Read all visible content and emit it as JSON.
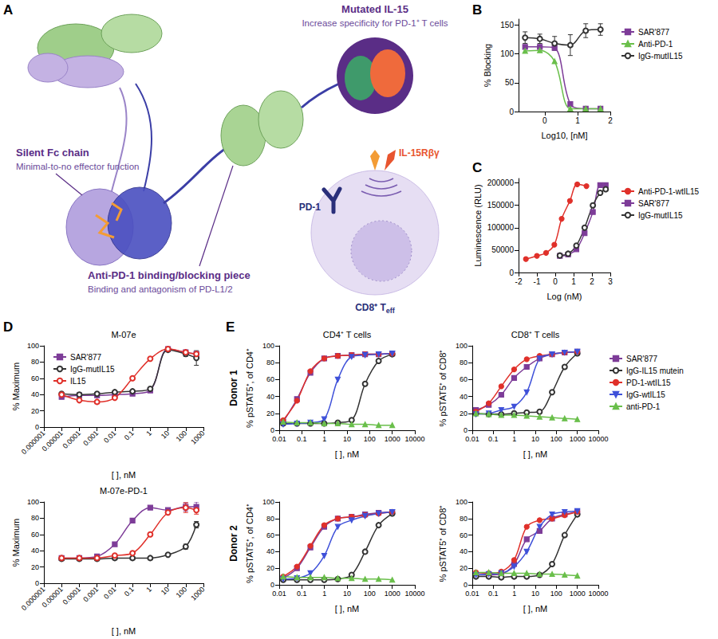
{
  "diagram": {
    "panel": "A",
    "callouts": [
      {
        "title": "Mutated IL-15",
        "text": "Increase specificity for PD-1⁺ T cells"
      },
      {
        "title": "Silent Fc chain",
        "text": "Minimal-to-no effector function"
      },
      {
        "title": "Anti-PD-1 binding/blocking piece",
        "text": "Binding and antagonism of PD-L1/2"
      }
    ],
    "receptors": [
      "IL-15Rβγ",
      "PD-1"
    ],
    "cell": {
      "text": "CD8⁺ T",
      "subscript": "eff"
    }
  },
  "chart_data": [
    {
      "panel": "B",
      "type": "line",
      "xlabel": "Log10, [nM]",
      "ylabel": "% Blocking",
      "xlim": [
        -0.8,
        2
      ],
      "xticks": [
        0,
        1,
        2
      ],
      "ylim": [
        0,
        160
      ],
      "yticks": [
        0,
        50,
        100,
        150
      ],
      "grid": false,
      "legend": "right",
      "x": [
        -0.6,
        -0.15,
        0.3,
        0.78,
        1.25,
        1.7
      ],
      "series": [
        {
          "name": "SAR'877",
          "color": "#7d3c98",
          "marker": "square",
          "values": [
            112,
            112,
            110,
            13,
            5,
            5
          ]
        },
        {
          "name": "Anti-PD-1",
          "color": "#6abf4b",
          "marker": "triangle",
          "values": [
            105,
            106,
            87,
            5,
            5,
            5
          ]
        },
        {
          "name": "IgG-mutIL15",
          "color": "#333333",
          "marker": "open circle",
          "values": [
            128,
            126,
            118,
            115,
            140,
            142
          ],
          "errors": [
            10,
            8,
            12,
            18,
            12,
            10
          ]
        }
      ]
    },
    {
      "panel": "C",
      "type": "line",
      "xlabel": "Log (nM)",
      "ylabel": "Luminescence (RLU)",
      "xlim": [
        -2,
        3
      ],
      "xticks": [
        -2,
        -1,
        0,
        1,
        2,
        3
      ],
      "ylim": [
        0,
        210000
      ],
      "yticks": [
        0,
        50000,
        100000,
        150000,
        200000
      ],
      "grid": false,
      "legend": "right",
      "series": [
        {
          "name": "Anti-PD-1-wtIL15",
          "color": "#e0302a",
          "marker": "circle",
          "x": [
            -1.6,
            -1.0,
            -0.5,
            -0.05,
            0.35,
            0.8,
            1.2,
            1.7
          ],
          "values": [
            30000,
            37000,
            44000,
            62000,
            120000,
            160000,
            197000,
            193000
          ]
        },
        {
          "name": "SAR'877",
          "color": "#7d3c98",
          "marker": "square",
          "x": [
            0.25,
            0.7,
            1.15,
            1.6,
            2.05,
            2.45,
            2.75
          ],
          "values": [
            37000,
            40000,
            52000,
            88000,
            135000,
            195000,
            195000
          ]
        },
        {
          "name": "IgG-mutIL15",
          "color": "#333333",
          "marker": "open circle",
          "x": [
            0.25,
            0.7,
            1.15,
            1.6,
            2.05,
            2.45,
            2.75
          ],
          "values": [
            38000,
            42000,
            60000,
            100000,
            150000,
            178000,
            186000
          ]
        }
      ]
    },
    {
      "panel": "D",
      "type": "line",
      "title": "M-07e",
      "xlabel": "[ ], nM",
      "ylabel": "% Maximum",
      "log": "x",
      "xlim": [
        1e-06,
        1000
      ],
      "xticks": [
        1e-06,
        1e-05,
        0.0001,
        0.001,
        0.01,
        0.1,
        1,
        10,
        100,
        1000
      ],
      "ylim": [
        0,
        100
      ],
      "yticks": [
        0,
        20,
        40,
        60,
        80,
        100
      ],
      "grid": false,
      "legend": "top-left",
      "x": [
        1e-05,
        0.0001,
        0.001,
        0.01,
        0.1,
        1,
        10,
        100,
        400
      ],
      "series": [
        {
          "name": "SAR'877",
          "color": "#7d3c98",
          "marker": "square",
          "values": [
            37,
            39,
            39,
            40,
            41,
            45,
            96,
            92,
            90
          ]
        },
        {
          "name": "IgG-mutIL15",
          "color": "#333333",
          "marker": "open circle",
          "values": [
            41,
            40,
            41,
            43,
            44,
            47,
            95,
            90,
            85
          ],
          "errors": [
            null,
            null,
            null,
            null,
            null,
            null,
            2,
            3,
            9
          ]
        },
        {
          "name": "IL15",
          "color": "#e0302a",
          "marker": "open circle",
          "values": [
            40,
            33,
            31,
            36,
            60,
            84,
            96,
            92,
            90
          ]
        }
      ]
    },
    {
      "type": "line",
      "title": "M-07e-PD-1",
      "xlabel": "[ ], nM",
      "ylabel": "% Maximum",
      "log": "x",
      "xlim": [
        1e-06,
        1000
      ],
      "xticks": [
        1e-06,
        1e-05,
        0.0001,
        0.001,
        0.01,
        0.1,
        1,
        10,
        100,
        1000
      ],
      "ylim": [
        0,
        100
      ],
      "yticks": [
        0,
        20,
        40,
        60,
        80,
        100
      ],
      "grid": false,
      "x": [
        1e-05,
        0.0001,
        0.001,
        0.01,
        0.1,
        1,
        10,
        100,
        400
      ],
      "series": [
        {
          "name": "SAR'877",
          "color": "#7d3c98",
          "marker": "square",
          "values": [
            31,
            31,
            33,
            48,
            77,
            93,
            90,
            94,
            94
          ],
          "errors": [
            null,
            null,
            null,
            null,
            null,
            null,
            null,
            5,
            6
          ]
        },
        {
          "name": "IgG-mutIL15",
          "color": "#333333",
          "marker": "open circle",
          "values": [
            30,
            30,
            30,
            31,
            31,
            31,
            35,
            45,
            72
          ],
          "errors": [
            null,
            null,
            null,
            null,
            null,
            null,
            null,
            3,
            4
          ]
        },
        {
          "name": "IL15",
          "color": "#e0302a",
          "marker": "open circle",
          "values": [
            31,
            31,
            31,
            34,
            37,
            60,
            87,
            93,
            90
          ],
          "errors": [
            null,
            null,
            null,
            null,
            null,
            null,
            null,
            6,
            5
          ]
        }
      ]
    },
    {
      "panel": "E",
      "type": "line",
      "title": "CD4⁺ T cells",
      "row_label": "Donor 1",
      "xlabel": "[ ], nM",
      "ylabel": "% pSTAT5⁺, of CD4⁺",
      "log": "x",
      "xlim": [
        0.01,
        10000
      ],
      "xticks": [
        0.01,
        0.1,
        1,
        10,
        100,
        1000,
        10000
      ],
      "ylim": [
        0,
        100
      ],
      "yticks": [
        0,
        20,
        40,
        60,
        80,
        100
      ],
      "grid": false,
      "x": [
        0.015,
        0.061,
        0.24,
        0.98,
        3.9,
        16,
        63,
        250,
        1000
      ],
      "series": [
        {
          "name": "SAR'877",
          "color": "#7d3c98",
          "marker": "square",
          "values": [
            10,
            37,
            68,
            85,
            88,
            89,
            90,
            90,
            91
          ]
        },
        {
          "name": "IgG-IL15 mutein",
          "color": "#333333",
          "marker": "open circle",
          "values": [
            8,
            8,
            8,
            8,
            9,
            12,
            55,
            82,
            90
          ]
        },
        {
          "name": "PD-1-wtIL15",
          "color": "#e0302a",
          "marker": "circle",
          "values": [
            12,
            35,
            70,
            85,
            88,
            89,
            90,
            90,
            91
          ]
        },
        {
          "name": "IgG-wtIL15",
          "color": "#3f51d9",
          "marker": "triangle-down",
          "values": [
            7,
            8,
            9,
            13,
            60,
            87,
            89,
            90,
            91
          ]
        },
        {
          "name": "anti-PD-1",
          "color": "#6abf4b",
          "marker": "triangle",
          "values": [
            10,
            9,
            9,
            8,
            8,
            7,
            7,
            6,
            6
          ]
        }
      ]
    },
    {
      "type": "line",
      "title": "CD8⁺ T cells",
      "xlabel": "[ ], nM",
      "ylabel": "% pSTAT5⁺ of CD8⁺",
      "log": "x",
      "xlim": [
        0.01,
        10000
      ],
      "xticks": [
        0.01,
        0.1,
        1,
        10,
        100,
        1000,
        10000
      ],
      "ylim": [
        0,
        100
      ],
      "yticks": [
        0,
        20,
        40,
        60,
        80,
        100
      ],
      "grid": false,
      "legend": "right",
      "x": [
        0.015,
        0.061,
        0.24,
        0.98,
        3.9,
        16,
        63,
        250,
        1000
      ],
      "series": [
        {
          "name": "SAR'877",
          "color": "#7d3c98",
          "marker": "square",
          "values": [
            24,
            30,
            42,
            62,
            75,
            85,
            90,
            92,
            93
          ]
        },
        {
          "name": "IgG-IL15 mutein",
          "color": "#333333",
          "marker": "open circle",
          "values": [
            20,
            19,
            19,
            20,
            21,
            22,
            45,
            75,
            91
          ]
        },
        {
          "name": "PD-1-wtIL15",
          "color": "#e0302a",
          "marker": "circle",
          "values": [
            22,
            32,
            52,
            72,
            84,
            88,
            90,
            92,
            93
          ]
        },
        {
          "name": "IgG-wtIL15",
          "color": "#3f51d9",
          "marker": "triangle-down",
          "values": [
            19,
            20,
            24,
            28,
            45,
            85,
            90,
            92,
            93
          ]
        },
        {
          "name": "anti-PD-1",
          "color": "#6abf4b",
          "marker": "triangle",
          "values": [
            20,
            19,
            18,
            18,
            17,
            16,
            15,
            14,
            13
          ]
        }
      ]
    },
    {
      "type": "line",
      "row_label": "Donor 2",
      "xlabel": "[ ], nM",
      "ylabel": "% pSTAT5⁺, of CD4⁺",
      "log": "x",
      "xlim": [
        0.01,
        10000
      ],
      "xticks": [
        0.01,
        0.1,
        1,
        10,
        100,
        1000,
        10000
      ],
      "ylim": [
        0,
        100
      ],
      "yticks": [
        0,
        20,
        40,
        60,
        80,
        100
      ],
      "grid": false,
      "x": [
        0.015,
        0.061,
        0.24,
        0.98,
        3.9,
        16,
        63,
        250,
        1000
      ],
      "series": [
        {
          "name": "SAR'877",
          "color": "#7d3c98",
          "marker": "square",
          "values": [
            8,
            20,
            45,
            70,
            80,
            82,
            85,
            87,
            88
          ]
        },
        {
          "name": "IgG-IL15 mutein",
          "color": "#333333",
          "marker": "open circle",
          "values": [
            6,
            6,
            6,
            6,
            7,
            12,
            40,
            72,
            86
          ]
        },
        {
          "name": "PD-1-wtIL15",
          "color": "#e0302a",
          "marker": "circle",
          "values": [
            10,
            22,
            47,
            72,
            80,
            82,
            84,
            86,
            88
          ]
        },
        {
          "name": "IgG-wtIL15",
          "color": "#3f51d9",
          "marker": "triangle-down",
          "values": [
            7,
            8,
            14,
            35,
            70,
            78,
            83,
            86,
            88
          ]
        },
        {
          "name": "anti-PD-1",
          "color": "#6abf4b",
          "marker": "triangle",
          "values": [
            10,
            9,
            9,
            9,
            8,
            8,
            7,
            7,
            6
          ]
        }
      ]
    },
    {
      "type": "line",
      "xlabel": "[ ], nM",
      "ylabel": "% pSTAT5⁺ of CD8⁺",
      "log": "x",
      "xlim": [
        0.01,
        10000
      ],
      "xticks": [
        0.01,
        0.1,
        1,
        10,
        100,
        1000,
        10000
      ],
      "ylim": [
        0,
        100
      ],
      "yticks": [
        0,
        20,
        40,
        60,
        80,
        100
      ],
      "grid": false,
      "x": [
        0.015,
        0.061,
        0.24,
        0.98,
        3.9,
        16,
        63,
        250,
        1000
      ],
      "series": [
        {
          "name": "SAR'877",
          "color": "#7d3c98",
          "marker": "square",
          "values": [
            12,
            12,
            13,
            25,
            55,
            65,
            80,
            85,
            88
          ]
        },
        {
          "name": "IgG-IL15 mutein",
          "color": "#333333",
          "marker": "open circle",
          "values": [
            10,
            10,
            9,
            10,
            10,
            12,
            25,
            60,
            85
          ]
        },
        {
          "name": "PD-1-wtIL15",
          "color": "#e0302a",
          "marker": "circle",
          "values": [
            15,
            14,
            16,
            30,
            70,
            78,
            80,
            84,
            88
          ]
        },
        {
          "name": "IgG-wtIL15",
          "color": "#3f51d9",
          "marker": "triangle-down",
          "values": [
            12,
            13,
            14,
            22,
            40,
            70,
            85,
            88,
            89
          ]
        },
        {
          "name": "anti-PD-1",
          "color": "#6abf4b",
          "marker": "triangle",
          "values": [
            15,
            15,
            14,
            14,
            14,
            13,
            13,
            12,
            11
          ]
        }
      ]
    }
  ]
}
